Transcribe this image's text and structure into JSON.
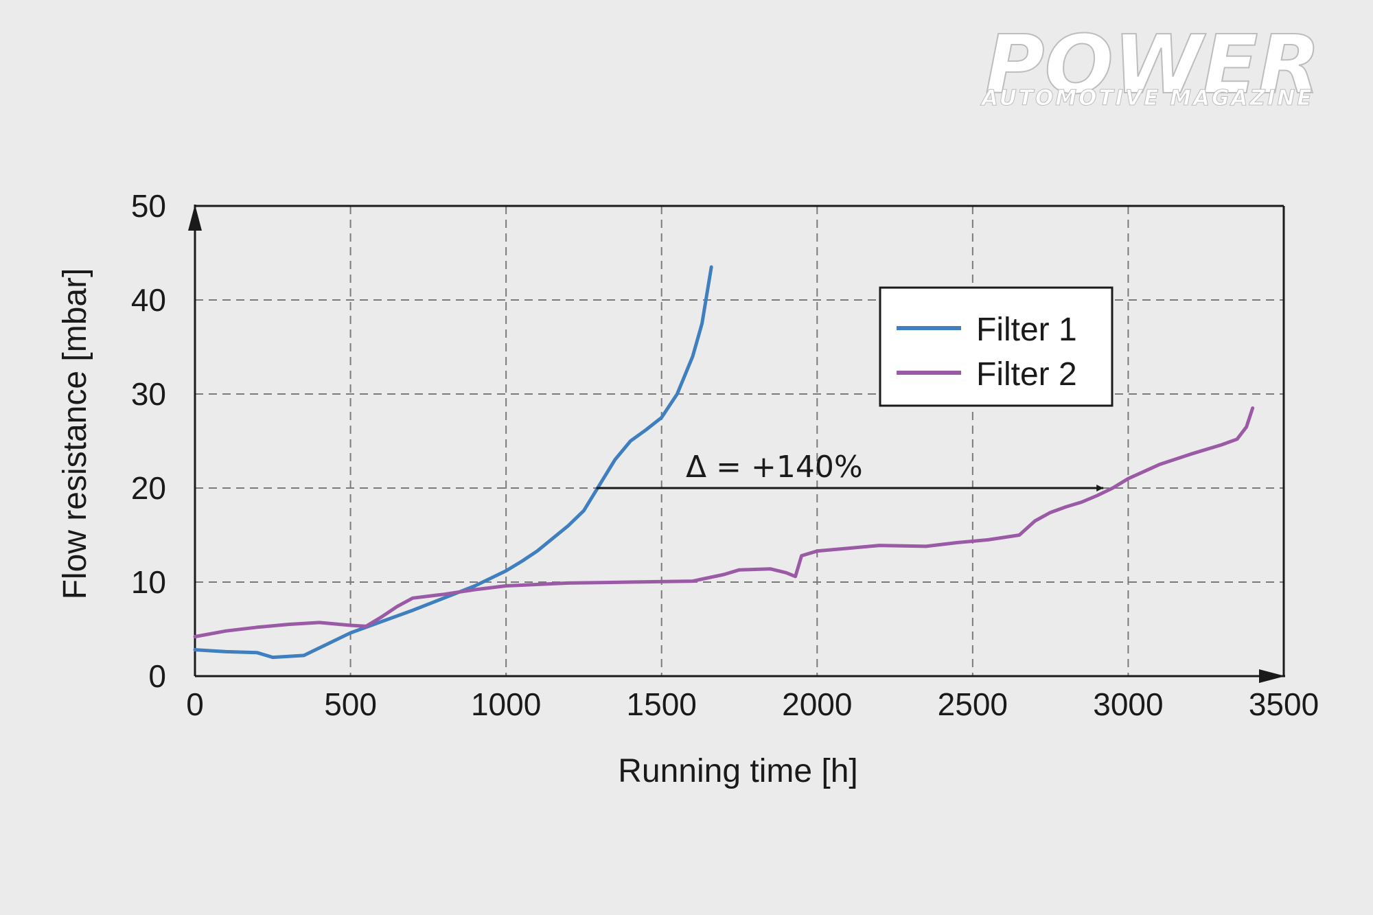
{
  "logo": {
    "title": "POWER",
    "subtitle": "AUTOMOTIVE MAGAZINE"
  },
  "colors": {
    "filter1": "#3f7fc0",
    "filter2": "#9a5aa6",
    "grid": "#7a7a7a",
    "axis": "#1a1a1a",
    "background": "#ebebeb"
  },
  "chart_data": {
    "type": "line",
    "title": "",
    "xlabel": "Running time [h]",
    "ylabel": "Flow resistance [mbar]",
    "xlim": [
      0,
      3500
    ],
    "ylim": [
      0,
      50
    ],
    "xticks": [
      0,
      500,
      1000,
      1500,
      2000,
      2500,
      3000,
      3500
    ],
    "yticks": [
      0,
      10,
      20,
      30,
      40,
      50
    ],
    "grid": true,
    "legend_position": "top-right",
    "series": [
      {
        "name": "Filter 1",
        "color": "#3f7fc0",
        "x": [
          0,
          100,
          200,
          250,
          350,
          400,
          500,
          600,
          700,
          800,
          900,
          1000,
          1050,
          1100,
          1200,
          1250,
          1350,
          1400,
          1450,
          1500,
          1550,
          1600,
          1630,
          1660
        ],
        "y": [
          2.8,
          2.6,
          2.5,
          2.0,
          2.2,
          3.0,
          4.6,
          5.8,
          7.0,
          8.3,
          9.6,
          11.2,
          12.2,
          13.3,
          16.0,
          17.6,
          23.0,
          25.0,
          26.2,
          27.5,
          30.0,
          34.0,
          37.5,
          43.5
        ]
      },
      {
        "name": "Filter 2",
        "color": "#9a5aa6",
        "x": [
          0,
          100,
          200,
          300,
          400,
          500,
          550,
          600,
          650,
          700,
          800,
          900,
          1000,
          1200,
          1400,
          1600,
          1700,
          1750,
          1850,
          1900,
          1930,
          1950,
          2000,
          2100,
          2200,
          2350,
          2450,
          2550,
          2650,
          2700,
          2750,
          2800,
          2850,
          2900,
          2950,
          3000,
          3100,
          3200,
          3300,
          3350,
          3380,
          3400
        ],
        "y": [
          4.2,
          4.8,
          5.2,
          5.5,
          5.7,
          5.4,
          5.3,
          6.3,
          7.4,
          8.3,
          8.7,
          9.2,
          9.6,
          9.9,
          10.0,
          10.1,
          10.8,
          11.3,
          11.4,
          11.0,
          10.6,
          12.8,
          13.3,
          13.6,
          13.9,
          13.8,
          14.2,
          14.5,
          15.0,
          16.5,
          17.4,
          18.0,
          18.5,
          19.2,
          20.0,
          21.0,
          22.5,
          23.6,
          24.6,
          25.2,
          26.5,
          28.5
        ]
      }
    ],
    "annotations": [
      {
        "text": "Δ = +140%",
        "arrow_from": [
          1290,
          20
        ],
        "arrow_to": [
          2920,
          20
        ]
      }
    ]
  }
}
